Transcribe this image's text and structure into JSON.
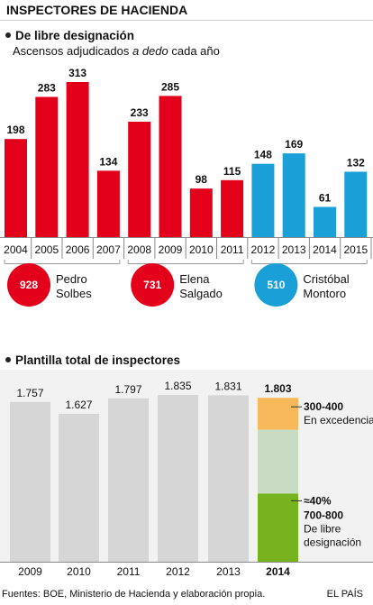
{
  "header": {
    "title": "INSPECTORES DE HACIENDA"
  },
  "section1": {
    "title": "De libre designación",
    "subtitle_pre": "Ascensos adjudicados ",
    "subtitle_em": "a dedo",
    "subtitle_post": " cada año"
  },
  "section2": {
    "title": "Plantilla total de inspectores"
  },
  "footer": {
    "source": "Fuentes: BOE, Ministerio de Hacienda y elaboración propia.",
    "brand": "EL PAÍS"
  },
  "colors": {
    "red": "#e2001a",
    "blue": "#1a9fd6",
    "gray": "#d6d6d6",
    "orange": "#f7b959",
    "light_green": "#c8dcc4",
    "green": "#77b21f"
  },
  "chart_data": [
    {
      "type": "bar",
      "title": "De libre designación",
      "subtitle": "Ascensos adjudicados a dedo cada año",
      "categories": [
        "2004",
        "2005",
        "2006",
        "2007",
        "2008",
        "2009",
        "2010",
        "2011",
        "2012",
        "2013",
        "2014",
        "2015"
      ],
      "values": [
        198,
        283,
        313,
        134,
        233,
        285,
        98,
        115,
        148,
        169,
        61,
        132
      ],
      "value_labels": [
        "198",
        "283",
        "313",
        "134",
        "233",
        "285",
        "98",
        "115",
        "148",
        "169",
        "61",
        "132"
      ],
      "groups": [
        {
          "name": "Pedro Solbes",
          "name_lines": [
            "Pedro",
            "Solbes"
          ],
          "total": "928",
          "start": 0,
          "end": 3,
          "color": "#e2001a"
        },
        {
          "name": "Elena Salgado",
          "name_lines": [
            "Elena",
            "Salgado"
          ],
          "total": "731",
          "start": 4,
          "end": 7,
          "color": "#e2001a"
        },
        {
          "name": "Cristóbal Montoro",
          "name_lines": [
            "Cristóbal",
            "Montoro"
          ],
          "total": "510",
          "start": 8,
          "end": 11,
          "color": "#1a9fd6"
        }
      ],
      "ylim": [
        0,
        313
      ]
    },
    {
      "type": "bar",
      "title": "Plantilla total de inspectores",
      "categories": [
        "2009",
        "2010",
        "2011",
        "2012",
        "2013",
        "2014"
      ],
      "values": [
        1757,
        1627,
        1797,
        1835,
        1831,
        1803
      ],
      "value_labels": [
        "1.757",
        "1.627",
        "1.797",
        "1.835",
        "1.831",
        "1.803"
      ],
      "stack_2014": [
        {
          "label": "700-800",
          "value": 750,
          "color": "#77b21f"
        },
        {
          "label": "",
          "value": 703,
          "color": "#c8dcc4"
        },
        {
          "label": "300-400",
          "value": 350,
          "color": "#f7b959"
        }
      ],
      "annotations": [
        {
          "bold": "300-400",
          "text": "En excedencia"
        },
        {
          "bold": "≈40%",
          "bold2": "700-800",
          "text": "De libre",
          "text2": "designación"
        }
      ],
      "ylim": [
        0,
        1835
      ]
    }
  ]
}
